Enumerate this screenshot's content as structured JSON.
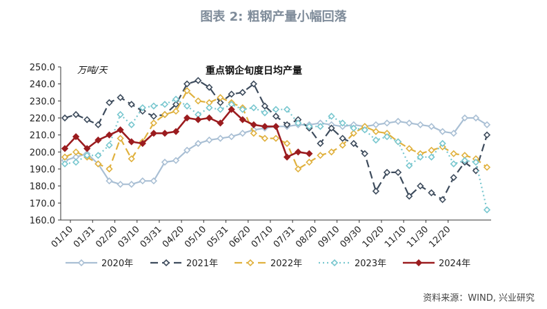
{
  "figure_title": "图表 2:  粗钢产量小幅回落",
  "source": "资料来源：WIND, 兴业研究",
  "chart_data": {
    "type": "line",
    "title": "重点钢企旬度日均产量",
    "ylabel": "万吨/天",
    "xlabel": "",
    "ylim": [
      160,
      250
    ],
    "yticks": [
      "160.0",
      "170.0",
      "180.0",
      "190.0",
      "200.0",
      "210.0",
      "220.0",
      "230.0",
      "240.0",
      "250.0"
    ],
    "x_tick_labels": [
      "01/10",
      "01/31",
      "02/20",
      "03/10",
      "03/31",
      "04/20",
      "05/10",
      "05/31",
      "06/20",
      "07/10",
      "07/31",
      "08/20",
      "09/10",
      "09/30",
      "10/20",
      "11/10",
      "11/30",
      "12/20"
    ],
    "legend_position": "bottom",
    "grid": false,
    "series": [
      {
        "name": "2020年",
        "color": "#a9bfd4",
        "dash": "",
        "marker": "diamond-open",
        "values": [
          195,
          197,
          199,
          193,
          183,
          181,
          181,
          183,
          183,
          194,
          195,
          201,
          205,
          207,
          208,
          209,
          211,
          213,
          214,
          215,
          215,
          216,
          216,
          217,
          216,
          215,
          216,
          215,
          216,
          217,
          218,
          217,
          216,
          215,
          212,
          211,
          220,
          220,
          216
        ]
      },
      {
        "name": "2021年",
        "color": "#3d4b5c",
        "dash": "11,6",
        "marker": "diamond-open",
        "values": [
          220,
          222,
          219,
          216,
          229,
          232,
          228,
          224,
          221,
          222,
          228,
          240,
          242,
          238,
          229,
          234,
          235,
          240,
          227,
          221,
          216,
          219,
          214,
          205,
          214,
          208,
          205,
          199,
          177,
          188,
          188,
          174,
          180,
          176,
          172,
          185,
          194,
          189,
          210
        ]
      },
      {
        "name": "2022年",
        "color": "#e0b13e",
        "dash": "11,6",
        "marker": "diamond-open",
        "values": [
          197,
          200,
          197,
          193,
          190,
          208,
          196,
          206,
          217,
          222,
          224,
          236,
          230,
          229,
          232,
          229,
          226,
          211,
          208,
          208,
          205,
          190,
          194,
          198,
          200,
          204,
          211,
          215,
          212,
          211,
          206,
          202,
          199,
          201,
          203,
          199,
          198,
          196,
          191
        ]
      },
      {
        "name": "2023年",
        "color": "#78c7cf",
        "dash": "2,4",
        "marker": "diamond-open",
        "values": [
          193,
          194,
          198,
          198,
          204,
          222,
          216,
          226,
          227,
          228,
          231,
          227,
          222,
          226,
          225,
          228,
          225,
          226,
          223,
          225,
          225,
          217,
          215,
          215,
          221,
          217,
          214,
          213,
          207,
          209,
          206,
          192,
          197,
          197,
          205,
          193,
          195,
          194,
          166
        ]
      },
      {
        "name": "2024年",
        "color": "#9b1c1f",
        "dash": "",
        "marker": "diamond-filled",
        "values": [
          202,
          209,
          202,
          207,
          210,
          213,
          206,
          205,
          211,
          211,
          212,
          220,
          219,
          220,
          217,
          225,
          219,
          216,
          215,
          215,
          197,
          200,
          199
        ]
      }
    ]
  }
}
